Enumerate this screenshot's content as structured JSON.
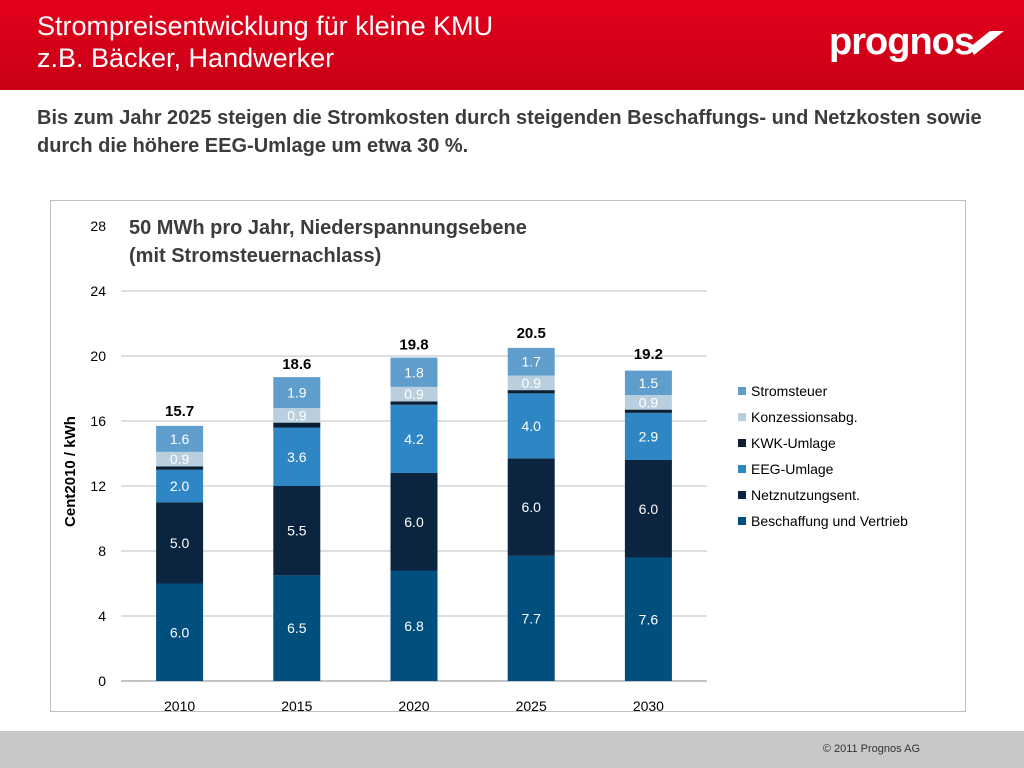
{
  "header": {
    "title_line1": "Strompreisentwicklung für kleine KMU",
    "title_line2": "z.B. Bäcker, Handwerker",
    "logo_text": "prognos"
  },
  "subtitle": "Bis zum Jahr 2025 steigen die Stromkosten durch steigenden Beschaffungs- und Netzkosten sowie durch die höhere EEG-Umlage um etwa 30 %.",
  "footer": {
    "copyright": "© 2011 Prognos AG"
  },
  "colors": {
    "header_red": "#d9001b",
    "Beschaffung": "#004f7f",
    "Netz": "#0b2540",
    "EEG": "#2f86c4",
    "KWK": "#0a1f33",
    "Konzession": "#b9cfde",
    "Stromsteuer": "#5f9dcc"
  },
  "chart_data": {
    "type": "bar",
    "stacked": true,
    "title": "50 MWh pro Jahr, Niederspannungsebene",
    "subtitle": "(mit Stromsteuernachlass)",
    "xlabel": "",
    "ylabel": "Cent2010 / kWh",
    "ylim": [
      0,
      28
    ],
    "yticks": [
      0,
      4,
      8,
      12,
      16,
      20,
      24,
      28
    ],
    "grid": true,
    "legend_position": "right",
    "categories": [
      "2010",
      "2015",
      "2020",
      "2025",
      "2030"
    ],
    "totals": [
      15.7,
      18.6,
      19.8,
      20.5,
      19.2
    ],
    "series": [
      {
        "name": "Beschaffung und Vertrieb",
        "color": "#004f7f",
        "values": [
          6.0,
          6.5,
          6.8,
          7.7,
          7.6
        ],
        "labels": [
          "6.0",
          "6.5",
          "6.8",
          "7.7",
          "7.6"
        ]
      },
      {
        "name": "Netznutzungsent.",
        "color": "#0b2540",
        "values": [
          5.0,
          5.5,
          6.0,
          6.0,
          6.0
        ],
        "labels": [
          "5.0",
          "5.5",
          "6.0",
          "6.0",
          "6.0"
        ]
      },
      {
        "name": "EEG-Umlage",
        "color": "#2f86c4",
        "values": [
          2.0,
          3.6,
          4.2,
          4.0,
          2.9
        ],
        "labels": [
          "2.0",
          "3.6",
          "4.2",
          "4.0",
          "2.9"
        ]
      },
      {
        "name": "KWK-Umlage",
        "color": "#0a1f33",
        "values": [
          0.2,
          0.3,
          0.2,
          0.2,
          0.2
        ],
        "labels": []
      },
      {
        "name": "Konzessionsabg.",
        "color": "#b9cfde",
        "values": [
          0.9,
          0.9,
          0.9,
          0.9,
          0.9
        ],
        "labels": [
          "0.9",
          "0.9",
          "0.9",
          "0.9",
          "0.9"
        ]
      },
      {
        "name": "Stromsteuer",
        "color": "#5f9dcc",
        "values": [
          1.6,
          1.9,
          1.8,
          1.7,
          1.5
        ],
        "labels": [
          "1.6",
          "1.9",
          "1.8",
          "1.7",
          "1.5"
        ]
      }
    ],
    "legend_order": [
      "Stromsteuer",
      "Konzessionsabg.",
      "KWK-Umlage",
      "EEG-Umlage",
      "Netznutzungsent.",
      "Beschaffung und Vertrieb"
    ]
  }
}
